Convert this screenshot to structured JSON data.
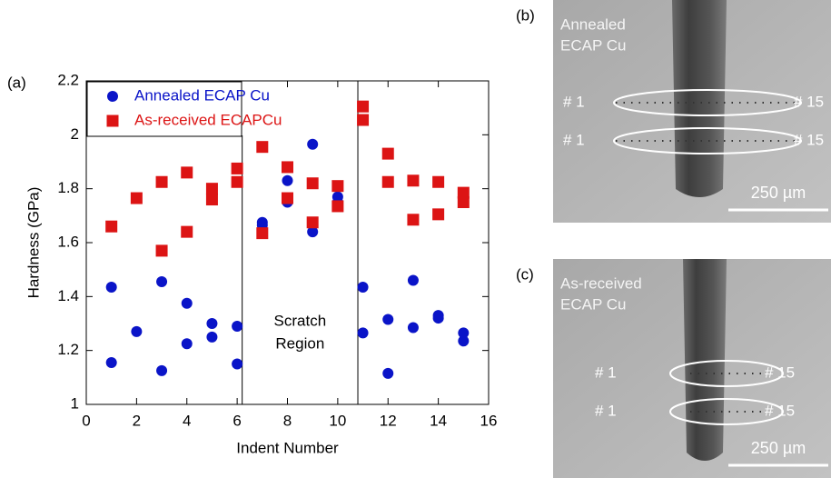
{
  "chart_data": {
    "type": "scatter",
    "panel_label": "(a)",
    "x_label": "Indent Number",
    "y_label": "Hardness (GPa)",
    "xlim": [
      0,
      16
    ],
    "xticks": [
      0,
      2,
      4,
      6,
      8,
      10,
      12,
      14,
      16
    ],
    "ylim": [
      1,
      2.2
    ],
    "yticks": [
      1,
      1.2,
      1.4,
      1.6,
      1.8,
      2,
      2.2
    ],
    "grid": false,
    "legend": "upper-left",
    "series": [
      {
        "name": "Annealed ECAP Cu",
        "color": "#0a14c8",
        "marker": "circle",
        "x": [
          1,
          1,
          2,
          3,
          3,
          4,
          4,
          5,
          5,
          6,
          6,
          7,
          7,
          8,
          8,
          9,
          9,
          10,
          10,
          11,
          11,
          12,
          12,
          13,
          13,
          14,
          14,
          15,
          15
        ],
        "values": [
          1.435,
          1.155,
          1.27,
          1.455,
          1.125,
          1.375,
          1.225,
          1.3,
          1.25,
          1.29,
          1.15,
          1.675,
          1.665,
          1.83,
          1.75,
          1.965,
          1.64,
          1.77,
          1.75,
          1.435,
          1.265,
          1.315,
          1.115,
          1.46,
          1.285,
          1.33,
          1.32,
          1.265,
          1.235
        ]
      },
      {
        "name": "As-received ECAPCu",
        "color": "#dc1414",
        "marker": "square",
        "x": [
          1,
          2,
          3,
          3,
          4,
          4,
          5,
          5,
          6,
          6,
          7,
          7,
          8,
          8,
          9,
          9,
          10,
          10,
          11,
          11,
          12,
          12,
          13,
          13,
          14,
          14,
          15,
          15
        ],
        "values": [
          1.66,
          1.765,
          1.825,
          1.57,
          1.86,
          1.64,
          1.8,
          1.76,
          1.875,
          1.825,
          1.955,
          1.635,
          1.88,
          1.765,
          1.82,
          1.675,
          1.81,
          1.735,
          2.105,
          2.055,
          1.93,
          1.825,
          1.83,
          1.685,
          1.825,
          1.705,
          1.785,
          1.75
        ]
      }
    ],
    "vlines": [
      6.2,
      10.8
    ],
    "annotation_lines": [
      "Scratch",
      "Region"
    ]
  },
  "micrographs": [
    {
      "label": "(b)",
      "caption_lines": [
        "Annealed",
        "ECAP Cu"
      ],
      "rows": [
        {
          "start": "# 1",
          "end": "# 15"
        },
        {
          "start": "# 1",
          "end": "# 15"
        }
      ],
      "scale": "250 µm"
    },
    {
      "label": "(c)",
      "caption_lines": [
        "As-received",
        "ECAP Cu"
      ],
      "rows": [
        {
          "start": "# 1",
          "end": "# 15"
        },
        {
          "start": "# 1",
          "end": "# 15"
        }
      ],
      "scale": "250 µm"
    }
  ]
}
